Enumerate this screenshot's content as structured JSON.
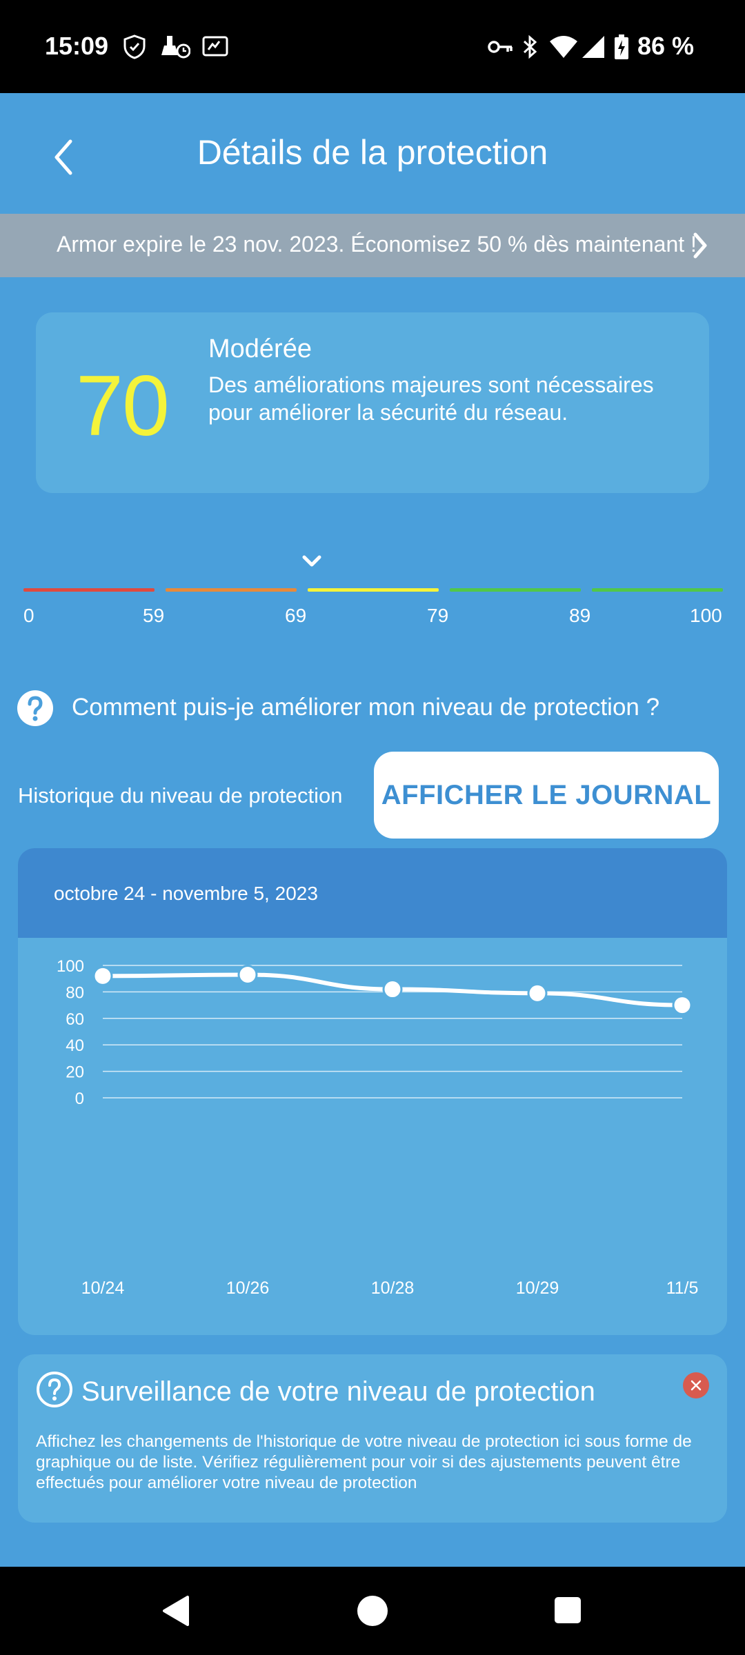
{
  "status_bar": {
    "time": "15:09",
    "battery": "86 %",
    "icons_left": [
      "shield-icon",
      "cleaner-icon",
      "screen-record-icon"
    ],
    "icons_right": [
      "vpn-key-icon",
      "bluetooth-icon",
      "wifi-icon",
      "signal-icon",
      "battery-charging-icon"
    ]
  },
  "header": {
    "title": "Détails de la protection"
  },
  "promo": {
    "text": "Armor expire le 23 nov. 2023. Économisez 50 % dès maintenant !"
  },
  "score": {
    "value": "70",
    "level": "Modérée",
    "description": "Des améliorations majeures sont nécessaires pour améliorer la sécurité du réseau.",
    "value_color": "#f4f33a"
  },
  "scale": {
    "labels": [
      "0",
      "59",
      "69",
      "79",
      "89",
      "100"
    ],
    "colors": [
      "#e04a3f",
      "#e88a3a",
      "#f4f33a",
      "#52c748",
      "#52c748"
    ],
    "current": 70
  },
  "help": {
    "text": "Comment puis-je améliorer mon niveau de protection ?"
  },
  "history": {
    "label": "Historique du niveau de protection",
    "button": "AFFICHER LE JOURNAL"
  },
  "chart_data": {
    "type": "line",
    "title": "octobre 24 - novembre 5, 2023",
    "categories": [
      "10/24",
      "10/26",
      "10/28",
      "10/29",
      "11/5"
    ],
    "values": [
      92,
      93,
      82,
      79,
      70
    ],
    "ylim": [
      0,
      100
    ],
    "yticks": [
      "100",
      "80",
      "60",
      "40",
      "20",
      "0"
    ],
    "grid": true
  },
  "info": {
    "title": "Surveillance de votre niveau de protection",
    "body": "Affichez les changements de l'historique de votre niveau de protection ici sous forme de graphique ou de liste. Vérifiez régulièrement pour voir si des ajustements peuvent être effectués pour améliorer votre niveau de protection"
  },
  "nav": {
    "buttons": [
      "back-nav-icon",
      "home-nav-icon",
      "recents-nav-icon"
    ]
  }
}
